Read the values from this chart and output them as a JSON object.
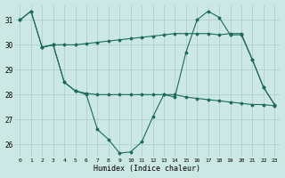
{
  "xlabel": "Humidex (Indice chaleur)",
  "bg_color": "#cce8e4",
  "grid_color": "#aacccc",
  "line_color": "#1a6b5a",
  "ylim": [
    25.5,
    31.6
  ],
  "xlim": [
    -0.5,
    23.5
  ],
  "yticks": [
    26,
    27,
    28,
    29,
    30,
    31
  ],
  "xticks": [
    0,
    1,
    2,
    3,
    4,
    5,
    6,
    7,
    8,
    9,
    10,
    11,
    12,
    13,
    14,
    15,
    16,
    17,
    18,
    19,
    20,
    21,
    22,
    23
  ],
  "line1_x": [
    0,
    1,
    2,
    3,
    4,
    5,
    6,
    7,
    8,
    9,
    10,
    11,
    12,
    13,
    14,
    15,
    16,
    17,
    18,
    19,
    20,
    21,
    22,
    23
  ],
  "line1_y": [
    31.0,
    31.35,
    29.9,
    30.0,
    30.0,
    30.0,
    30.05,
    30.1,
    30.15,
    30.2,
    30.25,
    30.3,
    30.35,
    30.4,
    30.45,
    30.45,
    30.45,
    30.45,
    30.4,
    30.45,
    30.45,
    29.4,
    28.3,
    27.6
  ],
  "line2_x": [
    0,
    1,
    2,
    3,
    4,
    5,
    6,
    7,
    8,
    9,
    10,
    11,
    12,
    13,
    14,
    15,
    16,
    17,
    18,
    19,
    20,
    21,
    22,
    23
  ],
  "line2_y": [
    31.0,
    31.35,
    29.9,
    30.0,
    28.5,
    28.15,
    28.0,
    26.6,
    26.2,
    25.65,
    25.7,
    26.1,
    27.1,
    28.0,
    27.9,
    29.7,
    31.0,
    31.35,
    31.1,
    30.4,
    30.4,
    29.4,
    28.3,
    27.6
  ],
  "line3_x": [
    2,
    3,
    4,
    5,
    6,
    7,
    8,
    9,
    10,
    11,
    12,
    13,
    14,
    15,
    16,
    17,
    18,
    19,
    20,
    21,
    22,
    23
  ],
  "line3_y": [
    29.9,
    30.0,
    28.5,
    28.15,
    28.05,
    28.0,
    28.0,
    28.0,
    28.0,
    28.0,
    28.0,
    28.0,
    28.0,
    27.9,
    27.85,
    27.8,
    27.75,
    27.7,
    27.65,
    27.6,
    27.6,
    27.55
  ]
}
